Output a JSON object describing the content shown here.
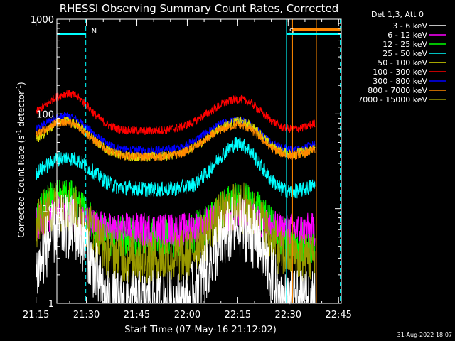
{
  "chart_data": {
    "type": "line",
    "title": "RHESSI Observing Summary Count Rates, Corrected",
    "xlabel": "Start Time (07-May-16 21:12:02)",
    "ylabel_main": "Corrected Count Rate (s",
    "ylabel_sup1": "-1",
    "ylabel_mid": " detector",
    "ylabel_sup2": "-1",
    "ylabel_end": ")",
    "yscale": "log",
    "ylim": [
      1,
      1000
    ],
    "xlim_minutes": [
      21.2,
      45.8
    ],
    "x_unit": "minutes after 21:00 UT (x >= 60 is the next hour)",
    "x_ticks": [
      {
        "value": 15,
        "label": "21:15"
      },
      {
        "value": 30,
        "label": "21:30"
      },
      {
        "value": 45,
        "label": "21:45"
      },
      {
        "value": 60,
        "label": "22:00"
      },
      {
        "value": 75,
        "label": "22:15"
      },
      {
        "value": 90,
        "label": "22:30"
      },
      {
        "value": 105,
        "label": "22:45"
      }
    ],
    "y_ticks": [
      {
        "value": 1,
        "label": "1"
      },
      {
        "value": 10,
        "label": "10"
      },
      {
        "value": 100,
        "label": "100"
      },
      {
        "value": 1000,
        "label": "1000"
      }
    ],
    "legend_title": "Det 1,3, Att 0",
    "legend_position": "right",
    "series": [
      {
        "name": "3 - 6 keV",
        "color": "#ffffff",
        "values": [
          {
            "x": 15,
            "y": 2
          },
          {
            "x": 18,
            "y": 4
          },
          {
            "x": 21,
            "y": 6
          },
          {
            "x": 24,
            "y": 6.5
          },
          {
            "x": 27,
            "y": 6
          },
          {
            "x": 30,
            "y": 4
          },
          {
            "x": 33,
            "y": 2
          },
          {
            "x": 36,
            "y": 1
          },
          {
            "x": 42,
            "y": 1
          },
          {
            "x": 48,
            "y": 1
          },
          {
            "x": 54,
            "y": 1
          },
          {
            "x": 60,
            "y": 1
          },
          {
            "x": 64,
            "y": 1.8
          },
          {
            "x": 67,
            "y": 3
          },
          {
            "x": 70,
            "y": 4.5
          },
          {
            "x": 73,
            "y": 6
          },
          {
            "x": 76,
            "y": 6.5
          },
          {
            "x": 79,
            "y": 5.5
          },
          {
            "x": 82,
            "y": 4
          },
          {
            "x": 85,
            "y": 2
          },
          {
            "x": 88,
            "y": 1
          },
          {
            "x": 94,
            "y": 1
          },
          {
            "x": 98,
            "y": 1
          }
        ]
      },
      {
        "name": "6 - 12 keV",
        "color": "#ff00ff",
        "values": [
          {
            "x": 15,
            "y": 7
          },
          {
            "x": 21,
            "y": 9
          },
          {
            "x": 24,
            "y": 9.5
          },
          {
            "x": 30,
            "y": 7
          },
          {
            "x": 36,
            "y": 6
          },
          {
            "x": 48,
            "y": 6
          },
          {
            "x": 60,
            "y": 6
          },
          {
            "x": 70,
            "y": 8
          },
          {
            "x": 76,
            "y": 9
          },
          {
            "x": 82,
            "y": 7
          },
          {
            "x": 88,
            "y": 6
          },
          {
            "x": 98,
            "y": 6
          }
        ]
      },
      {
        "name": "12 - 25 keV",
        "color": "#00ff00",
        "values": [
          {
            "x": 15,
            "y": 8
          },
          {
            "x": 18,
            "y": 11
          },
          {
            "x": 21,
            "y": 13
          },
          {
            "x": 24,
            "y": 13
          },
          {
            "x": 27,
            "y": 11
          },
          {
            "x": 30,
            "y": 8
          },
          {
            "x": 33,
            "y": 6
          },
          {
            "x": 36,
            "y": 5
          },
          {
            "x": 48,
            "y": 5
          },
          {
            "x": 60,
            "y": 5
          },
          {
            "x": 66,
            "y": 7
          },
          {
            "x": 72,
            "y": 11
          },
          {
            "x": 76,
            "y": 12
          },
          {
            "x": 80,
            "y": 10
          },
          {
            "x": 84,
            "y": 7
          },
          {
            "x": 88,
            "y": 5
          },
          {
            "x": 98,
            "y": 4
          }
        ]
      },
      {
        "name": "25 - 50 keV",
        "color": "#00ffff",
        "values": [
          {
            "x": 15,
            "y": 24
          },
          {
            "x": 18,
            "y": 28
          },
          {
            "x": 21,
            "y": 33
          },
          {
            "x": 24,
            "y": 35
          },
          {
            "x": 27,
            "y": 33
          },
          {
            "x": 30,
            "y": 28
          },
          {
            "x": 33,
            "y": 23
          },
          {
            "x": 36,
            "y": 19
          },
          {
            "x": 39,
            "y": 17
          },
          {
            "x": 42,
            "y": 16.5
          },
          {
            "x": 48,
            "y": 16
          },
          {
            "x": 54,
            "y": 16
          },
          {
            "x": 58,
            "y": 16.5
          },
          {
            "x": 62,
            "y": 18
          },
          {
            "x": 66,
            "y": 24
          },
          {
            "x": 70,
            "y": 36
          },
          {
            "x": 74,
            "y": 48
          },
          {
            "x": 76,
            "y": 49
          },
          {
            "x": 79,
            "y": 40
          },
          {
            "x": 82,
            "y": 28
          },
          {
            "x": 85,
            "y": 20
          },
          {
            "x": 88,
            "y": 16
          },
          {
            "x": 91,
            "y": 15
          },
          {
            "x": 95,
            "y": 16
          },
          {
            "x": 98,
            "y": 18
          }
        ]
      },
      {
        "name": "50 - 100 keV",
        "color": "#dddd00",
        "values": [
          {
            "x": 15,
            "y": 53
          },
          {
            "x": 18,
            "y": 65
          },
          {
            "x": 21,
            "y": 80
          },
          {
            "x": 24,
            "y": 85
          },
          {
            "x": 27,
            "y": 78
          },
          {
            "x": 30,
            "y": 63
          },
          {
            "x": 33,
            "y": 50
          },
          {
            "x": 36,
            "y": 42
          },
          {
            "x": 39,
            "y": 38
          },
          {
            "x": 42,
            "y": 36
          },
          {
            "x": 48,
            "y": 35
          },
          {
            "x": 54,
            "y": 36
          },
          {
            "x": 58,
            "y": 38
          },
          {
            "x": 62,
            "y": 44
          },
          {
            "x": 66,
            "y": 56
          },
          {
            "x": 70,
            "y": 72
          },
          {
            "x": 74,
            "y": 82
          },
          {
            "x": 76,
            "y": 84
          },
          {
            "x": 79,
            "y": 75
          },
          {
            "x": 82,
            "y": 60
          },
          {
            "x": 85,
            "y": 46
          },
          {
            "x": 88,
            "y": 40
          },
          {
            "x": 91,
            "y": 38
          },
          {
            "x": 95,
            "y": 40
          },
          {
            "x": 98,
            "y": 44
          }
        ]
      },
      {
        "name": "100 - 300 keV",
        "color": "#ff0000",
        "values": [
          {
            "x": 15,
            "y": 105
          },
          {
            "x": 18,
            "y": 125
          },
          {
            "x": 21,
            "y": 150
          },
          {
            "x": 24,
            "y": 165
          },
          {
            "x": 27,
            "y": 155
          },
          {
            "x": 30,
            "y": 125
          },
          {
            "x": 33,
            "y": 95
          },
          {
            "x": 36,
            "y": 78
          },
          {
            "x": 39,
            "y": 70
          },
          {
            "x": 42,
            "y": 67
          },
          {
            "x": 48,
            "y": 66
          },
          {
            "x": 54,
            "y": 68
          },
          {
            "x": 58,
            "y": 72
          },
          {
            "x": 62,
            "y": 82
          },
          {
            "x": 66,
            "y": 102
          },
          {
            "x": 70,
            "y": 125
          },
          {
            "x": 74,
            "y": 142
          },
          {
            "x": 76,
            "y": 143
          },
          {
            "x": 79,
            "y": 130
          },
          {
            "x": 82,
            "y": 105
          },
          {
            "x": 85,
            "y": 85
          },
          {
            "x": 88,
            "y": 72
          },
          {
            "x": 91,
            "y": 69
          },
          {
            "x": 95,
            "y": 72
          },
          {
            "x": 98,
            "y": 80
          }
        ]
      },
      {
        "name": "300 - 800 keV",
        "color": "#0000ff",
        "values": [
          {
            "x": 15,
            "y": 68
          },
          {
            "x": 18,
            "y": 80
          },
          {
            "x": 21,
            "y": 92
          },
          {
            "x": 24,
            "y": 95
          },
          {
            "x": 27,
            "y": 88
          },
          {
            "x": 30,
            "y": 72
          },
          {
            "x": 33,
            "y": 58
          },
          {
            "x": 36,
            "y": 48
          },
          {
            "x": 39,
            "y": 44
          },
          {
            "x": 42,
            "y": 42
          },
          {
            "x": 48,
            "y": 41
          },
          {
            "x": 54,
            "y": 42
          },
          {
            "x": 58,
            "y": 44
          },
          {
            "x": 62,
            "y": 52
          },
          {
            "x": 66,
            "y": 64
          },
          {
            "x": 70,
            "y": 78
          },
          {
            "x": 74,
            "y": 86
          },
          {
            "x": 76,
            "y": 85
          },
          {
            "x": 79,
            "y": 76
          },
          {
            "x": 82,
            "y": 62
          },
          {
            "x": 85,
            "y": 50
          },
          {
            "x": 88,
            "y": 44
          },
          {
            "x": 91,
            "y": 42
          },
          {
            "x": 95,
            "y": 44
          },
          {
            "x": 98,
            "y": 48
          }
        ]
      },
      {
        "name": "800 - 7000 keV",
        "color": "#ff8800",
        "values": [
          {
            "x": 15,
            "y": 60
          },
          {
            "x": 18,
            "y": 70
          },
          {
            "x": 21,
            "y": 80
          },
          {
            "x": 24,
            "y": 82
          },
          {
            "x": 27,
            "y": 76
          },
          {
            "x": 30,
            "y": 62
          },
          {
            "x": 33,
            "y": 50
          },
          {
            "x": 36,
            "y": 42
          },
          {
            "x": 39,
            "y": 38
          },
          {
            "x": 42,
            "y": 36
          },
          {
            "x": 48,
            "y": 35
          },
          {
            "x": 54,
            "y": 36
          },
          {
            "x": 58,
            "y": 38
          },
          {
            "x": 62,
            "y": 44
          },
          {
            "x": 66,
            "y": 55
          },
          {
            "x": 70,
            "y": 68
          },
          {
            "x": 74,
            "y": 76
          },
          {
            "x": 76,
            "y": 76
          },
          {
            "x": 79,
            "y": 68
          },
          {
            "x": 82,
            "y": 55
          },
          {
            "x": 85,
            "y": 44
          },
          {
            "x": 88,
            "y": 38
          },
          {
            "x": 91,
            "y": 36
          },
          {
            "x": 95,
            "y": 38
          },
          {
            "x": 98,
            "y": 42
          }
        ]
      },
      {
        "name": "7000 - 15000 keV",
        "color": "#999900",
        "values": [
          {
            "x": 15,
            "y": 7
          },
          {
            "x": 18,
            "y": 9
          },
          {
            "x": 21,
            "y": 11
          },
          {
            "x": 24,
            "y": 11
          },
          {
            "x": 27,
            "y": 9
          },
          {
            "x": 30,
            "y": 7
          },
          {
            "x": 33,
            "y": 5
          },
          {
            "x": 36,
            "y": 3.5
          },
          {
            "x": 42,
            "y": 3
          },
          {
            "x": 48,
            "y": 3
          },
          {
            "x": 54,
            "y": 3
          },
          {
            "x": 60,
            "y": 3.2
          },
          {
            "x": 64,
            "y": 4.5
          },
          {
            "x": 67,
            "y": 6
          },
          {
            "x": 70,
            "y": 8
          },
          {
            "x": 73,
            "y": 10
          },
          {
            "x": 76,
            "y": 10.5
          },
          {
            "x": 79,
            "y": 9
          },
          {
            "x": 82,
            "y": 7
          },
          {
            "x": 85,
            "y": 4.5
          },
          {
            "x": 88,
            "y": 3.5
          },
          {
            "x": 94,
            "y": 3
          },
          {
            "x": 98,
            "y": 3
          }
        ]
      }
    ],
    "annotations": [
      {
        "label": "N",
        "color": "#00ffff",
        "kind": "night",
        "x_start": 21.2,
        "x_end": 29.8
      },
      {
        "label": "S",
        "color": "#00ffff",
        "kind": "saa",
        "x_start": 89.5,
        "x_end": 105.5
      }
    ],
    "vertical_markers": [
      {
        "x": 21.2,
        "color": "#00ffff",
        "style": "solid"
      },
      {
        "x": 29.8,
        "color": "#00ffff",
        "style": "dashed"
      },
      {
        "x": 89.5,
        "color": "#00ffff",
        "style": "solid"
      },
      {
        "x": 91.3,
        "color": "#ff8800",
        "style": "solid"
      },
      {
        "x": 98.4,
        "color": "#ff8800",
        "style": "solid"
      },
      {
        "x": 105.5,
        "color": "#00ffff",
        "style": "dashed"
      }
    ]
  },
  "footer_timestamp": "31-Aug-2022 18:07"
}
